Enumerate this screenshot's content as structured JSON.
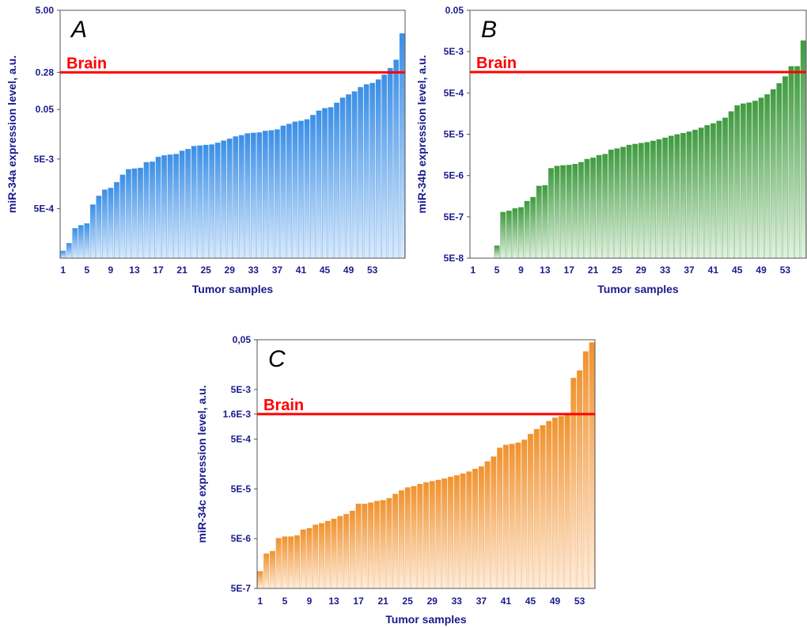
{
  "chart_data": [
    {
      "panel_label": "A",
      "type": "bar",
      "scale": "log",
      "xlabel": "Tumor samples",
      "ylabel": "miR-34a expression level, a.u.",
      "ylim": [
        5e-05,
        5.0
      ],
      "yticks": [
        {
          "value": 5.0,
          "label": "5.00"
        },
        {
          "value": 0.28,
          "label": "0.28"
        },
        {
          "value": 0.05,
          "label": "0.05"
        },
        {
          "value": 0.005,
          "label": "5E-3"
        },
        {
          "value": 0.0005,
          "label": "5E-4"
        }
      ],
      "xtick_labels": [
        "1",
        "5",
        "9",
        "13",
        "17",
        "21",
        "25",
        "29",
        "33",
        "37",
        "41",
        "45",
        "49",
        "53"
      ],
      "reference": {
        "label": "Brain",
        "value": 0.28,
        "color": "#ff0000"
      },
      "bar_color_top": "#3a8ee6",
      "bar_color_bottom": "#dcebfb",
      "values": [
        7e-05,
        0.0001,
        0.0002,
        0.00023,
        0.00025,
        0.0006,
        0.0009,
        0.0012,
        0.0013,
        0.0017,
        0.0024,
        0.0031,
        0.0032,
        0.0033,
        0.0043,
        0.0044,
        0.0055,
        0.0059,
        0.0061,
        0.0063,
        0.0073,
        0.0079,
        0.0091,
        0.0093,
        0.0096,
        0.0098,
        0.0106,
        0.0117,
        0.0128,
        0.0142,
        0.0151,
        0.0164,
        0.0168,
        0.0171,
        0.0184,
        0.0189,
        0.0197,
        0.0234,
        0.0254,
        0.0282,
        0.0293,
        0.0315,
        0.0385,
        0.0471,
        0.0528,
        0.0551,
        0.068,
        0.086,
        0.1,
        0.115,
        0.14,
        0.16,
        0.17,
        0.2,
        0.25,
        0.34,
        0.5,
        1.7
      ]
    },
    {
      "panel_label": "B",
      "type": "bar",
      "scale": "log",
      "xlabel": "Tumor samples",
      "ylabel": "miR-34b expression level, a.u.",
      "ylim": [
        5e-08,
        0.05
      ],
      "yticks": [
        {
          "value": 0.05,
          "label": "0.05"
        },
        {
          "value": 0.005,
          "label": "5E-3"
        },
        {
          "value": 0.0005,
          "label": "5E-4"
        },
        {
          "value": 5e-05,
          "label": "5E-5"
        },
        {
          "value": 5e-06,
          "label": "5E-6"
        },
        {
          "value": 5e-07,
          "label": "5E-7"
        },
        {
          "value": 5e-08,
          "label": "5E-8"
        }
      ],
      "xtick_labels": [
        "1",
        "5",
        "9",
        "13",
        "17",
        "21",
        "25",
        "29",
        "33",
        "37",
        "41",
        "45",
        "49",
        "53"
      ],
      "reference": {
        "label": "Brain",
        "value": 0.0016,
        "color": "#ff0000"
      },
      "bar_color_top": "#3f9a3f",
      "bar_color_bottom": "#e4f2e2",
      "values": [
        null,
        null,
        null,
        null,
        1e-07,
        6.5e-07,
        7e-07,
        8e-07,
        8.5e-07,
        1.2e-06,
        1.5e-06,
        2.8e-06,
        2.9e-06,
        7.5e-06,
        8.5e-06,
        8.8e-06,
        9e-06,
        9.5e-06,
        1.05e-05,
        1.25e-05,
        1.35e-05,
        1.55e-05,
        1.65e-05,
        2.1e-05,
        2.25e-05,
        2.45e-05,
        2.75e-05,
        2.9e-05,
        3.05e-05,
        3.2e-05,
        3.45e-05,
        3.75e-05,
        4.1e-05,
        4.55e-05,
        4.95e-05,
        5.3e-05,
        5.75e-05,
        6.35e-05,
        7.15e-05,
        8.2e-05,
        9.1e-05,
        0.000105,
        0.000125,
        0.000178,
        0.000248,
        0.000275,
        0.00029,
        0.00032,
        0.00038,
        0.00046,
        0.00061,
        0.00085,
        0.00125,
        0.0022,
        0.0022,
        0.0092
      ]
    },
    {
      "panel_label": "C",
      "type": "bar",
      "scale": "log",
      "xlabel": "Tumor samples",
      "ylabel": "miR-34c expression level, a.u.",
      "ylim": [
        5e-07,
        0.05
      ],
      "yticks": [
        {
          "value": 0.05,
          "label": "0,05"
        },
        {
          "value": 0.005,
          "label": "5E-3"
        },
        {
          "value": 0.0016,
          "label": "1.6E-3"
        },
        {
          "value": 0.0005,
          "label": "5E-4"
        },
        {
          "value": 5e-05,
          "label": "5E-5"
        },
        {
          "value": 5e-06,
          "label": "5E-6"
        },
        {
          "value": 5e-07,
          "label": "5E-7"
        }
      ],
      "xtick_labels": [
        "1",
        "5",
        "9",
        "13",
        "17",
        "21",
        "25",
        "29",
        "33",
        "37",
        "41",
        "45",
        "49",
        "53"
      ],
      "reference": {
        "label": "Brain",
        "value": 0.0016,
        "color": "#ff0000"
      },
      "bar_color_top": "#f0922e",
      "bar_color_bottom": "#fdeee0",
      "values": [
        1.1e-06,
        2.5e-06,
        2.8e-06,
        5.1e-06,
        5.5e-06,
        5.5e-06,
        5.8e-06,
        7.6e-06,
        8.1e-06,
        9.5e-06,
        1.02e-05,
        1.13e-05,
        1.25e-05,
        1.41e-05,
        1.55e-05,
        1.81e-05,
        2.5e-05,
        2.5e-05,
        2.65e-05,
        2.85e-05,
        2.96e-05,
        3.25e-05,
        3.95e-05,
        4.65e-05,
        5.35e-05,
        5.65e-05,
        6.25e-05,
        6.75e-05,
        7.15e-05,
        7.55e-05,
        8.05e-05,
        8.75e-05,
        9.35e-05,
        0.0001015,
        0.0001115,
        0.0001265,
        0.0001415,
        0.000178,
        0.000223,
        0.000335,
        0.000385,
        0.0004,
        0.000425,
        0.000485,
        0.000635,
        0.000795,
        0.00095,
        0.00115,
        0.00135,
        0.00145,
        0.00155,
        0.0085,
        0.012,
        0.029,
        0.044
      ]
    }
  ]
}
